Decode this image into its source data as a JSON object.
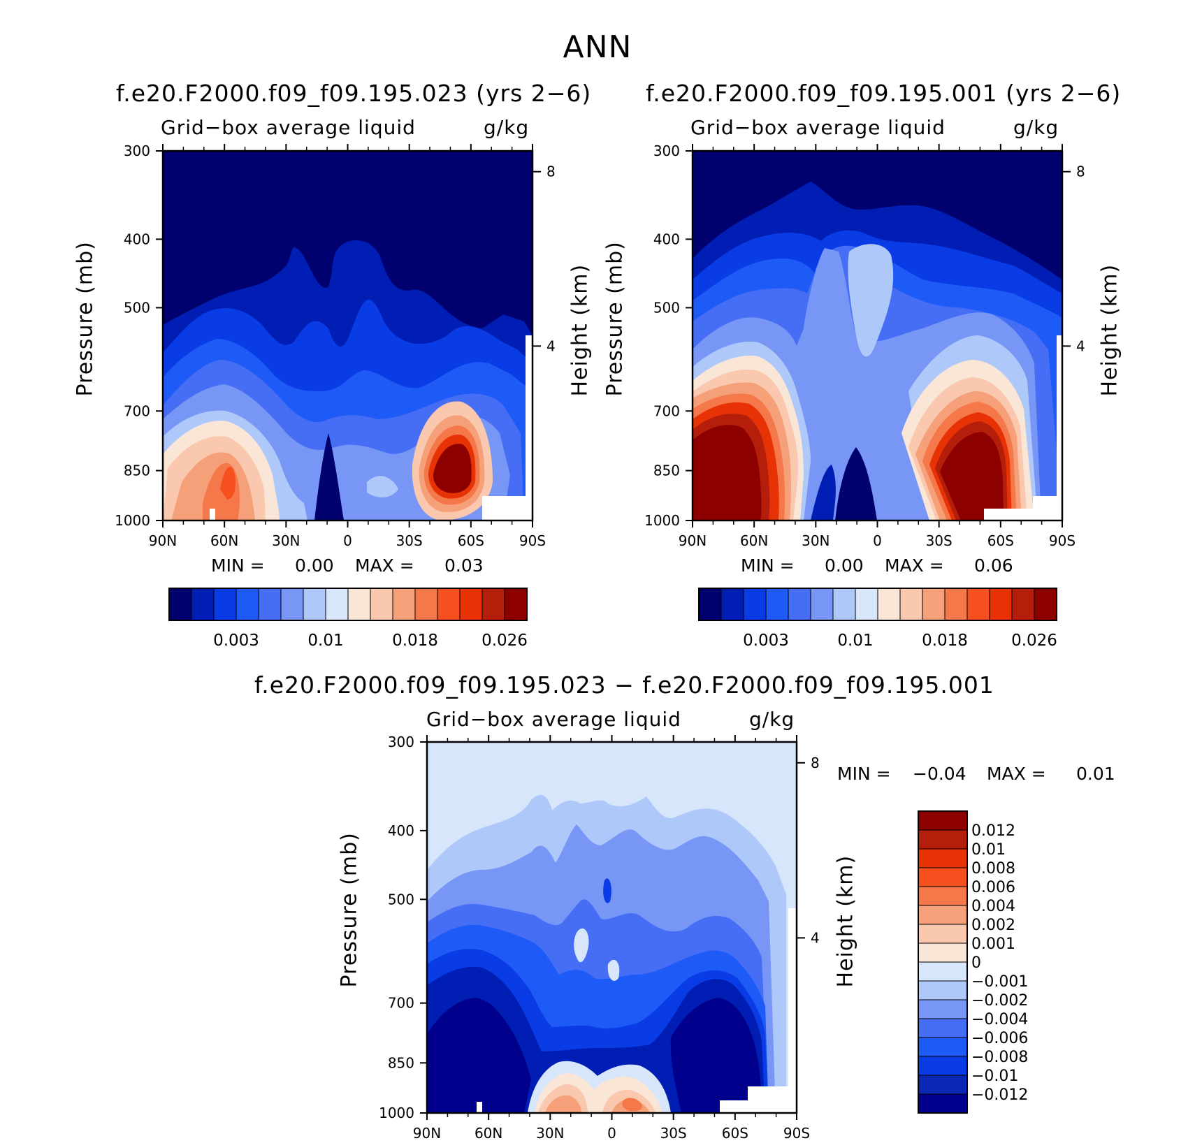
{
  "figure": {
    "title": "ANN",
    "colors": {
      "abs_scale": [
        "#00006e",
        "#001eb4",
        "#0a3ce6",
        "#1e5af5",
        "#466ef5",
        "#7896f5",
        "#afc8fa",
        "#d7e6fa",
        "#fae6d7",
        "#fac8af",
        "#f5a078",
        "#f5784b",
        "#f5501e",
        "#e63205",
        "#b41e0a",
        "#8c0000"
      ],
      "diff_scale": [
        "#00008c",
        "#0a28b4",
        "#0a3ce6",
        "#1e5af5",
        "#466ef5",
        "#7896f5",
        "#afc8fa",
        "#d7e6fa",
        "#fae6d7",
        "#fac8af",
        "#f5a078",
        "#f5784b",
        "#f5501e",
        "#e63205",
        "#b41e0a",
        "#8c0000"
      ]
    }
  },
  "panels": [
    {
      "title": "f.e20.F2000.f09_f09.195.023 (yrs 2−6)",
      "subtitle_left": "Grid−box average liquid",
      "subtitle_right": "g/kg",
      "ylabel_left": "Pressure (mb)",
      "ylabel_right": "Height (km)",
      "min_label": "MIN =",
      "min_value": "0.00",
      "max_label": "MAX =",
      "max_value": "0.03"
    },
    {
      "title": "f.e20.F2000.f09_f09.195.001 (yrs 2−6)",
      "subtitle_left": "Grid−box average liquid",
      "subtitle_right": "g/kg",
      "ylabel_left": "Pressure (mb)",
      "ylabel_right": "Height (km)",
      "min_label": "MIN =",
      "min_value": "0.00",
      "max_label": "MAX =",
      "max_value": "0.06"
    },
    {
      "title": "f.e20.F2000.f09_f09.195.023 − f.e20.F2000.f09_f09.195.001",
      "subtitle_left": "Grid−box average liquid",
      "subtitle_right": "g/kg",
      "ylabel_left": "Pressure (mb)",
      "ylabel_right": "Height (km)",
      "min_label": "MIN =",
      "min_value": "−0.04",
      "max_label": "MAX =",
      "max_value": "0.01"
    }
  ],
  "axes": {
    "pressure_ticks": [
      "300",
      "400",
      "500",
      "700",
      "850",
      "1000"
    ],
    "height_ticks": [
      "8",
      "4"
    ],
    "lat_ticks": [
      "90N",
      "60N",
      "30N",
      "0",
      "30S",
      "60S",
      "90S"
    ]
  },
  "colorbar_abs": {
    "labels": [
      "0.003",
      "0.01",
      "0.018",
      "0.026"
    ]
  },
  "colorbar_diff": {
    "labels": [
      "0.012",
      "0.01",
      "0.008",
      "0.006",
      "0.004",
      "0.002",
      "0.001",
      "0",
      "−0.001",
      "−0.002",
      "−0.004",
      "−0.006",
      "−0.008",
      "−0.01",
      "−0.012"
    ]
  },
  "chart_data": [
    {
      "type": "heatmap",
      "title": "f.e20.F2000.f09_f09.195.023 (yrs 2−6)",
      "variable": "Grid−box average liquid",
      "units": "g/kg",
      "x": [
        "90N",
        "60N",
        "30N",
        "0",
        "30S",
        "60S",
        "90S"
      ],
      "y_pressure_mb": [
        300,
        400,
        500,
        700,
        850,
        1000
      ],
      "y2_height_km": [
        8,
        4
      ],
      "ylabel": "Pressure (mb)",
      "y2label": "Height (km)",
      "min": 0.0,
      "max": 0.03,
      "colorbar_ticks": [
        0.003,
        0.01,
        0.018,
        0.026
      ]
    },
    {
      "type": "heatmap",
      "title": "f.e20.F2000.f09_f09.195.001 (yrs 2−6)",
      "variable": "Grid−box average liquid",
      "units": "g/kg",
      "x": [
        "90N",
        "60N",
        "30N",
        "0",
        "30S",
        "60S",
        "90S"
      ],
      "y_pressure_mb": [
        300,
        400,
        500,
        700,
        850,
        1000
      ],
      "y2_height_km": [
        8,
        4
      ],
      "ylabel": "Pressure (mb)",
      "y2label": "Height (km)",
      "min": 0.0,
      "max": 0.06,
      "colorbar_ticks": [
        0.003,
        0.01,
        0.018,
        0.026
      ]
    },
    {
      "type": "heatmap",
      "title": "f.e20.F2000.f09_f09.195.023 − f.e20.F2000.f09_f09.195.001",
      "variable": "Grid−box average liquid",
      "units": "g/kg",
      "x": [
        "90N",
        "60N",
        "30N",
        "0",
        "30S",
        "60S",
        "90S"
      ],
      "y_pressure_mb": [
        300,
        400,
        500,
        700,
        850,
        1000
      ],
      "y2_height_km": [
        8,
        4
      ],
      "ylabel": "Pressure (mb)",
      "y2label": "Height (km)",
      "min": -0.04,
      "max": 0.01,
      "colorbar_ticks": [
        0.012,
        0.01,
        0.008,
        0.006,
        0.004,
        0.002,
        0.001,
        0,
        -0.001,
        -0.002,
        -0.004,
        -0.006,
        -0.008,
        -0.01,
        -0.012
      ]
    }
  ]
}
